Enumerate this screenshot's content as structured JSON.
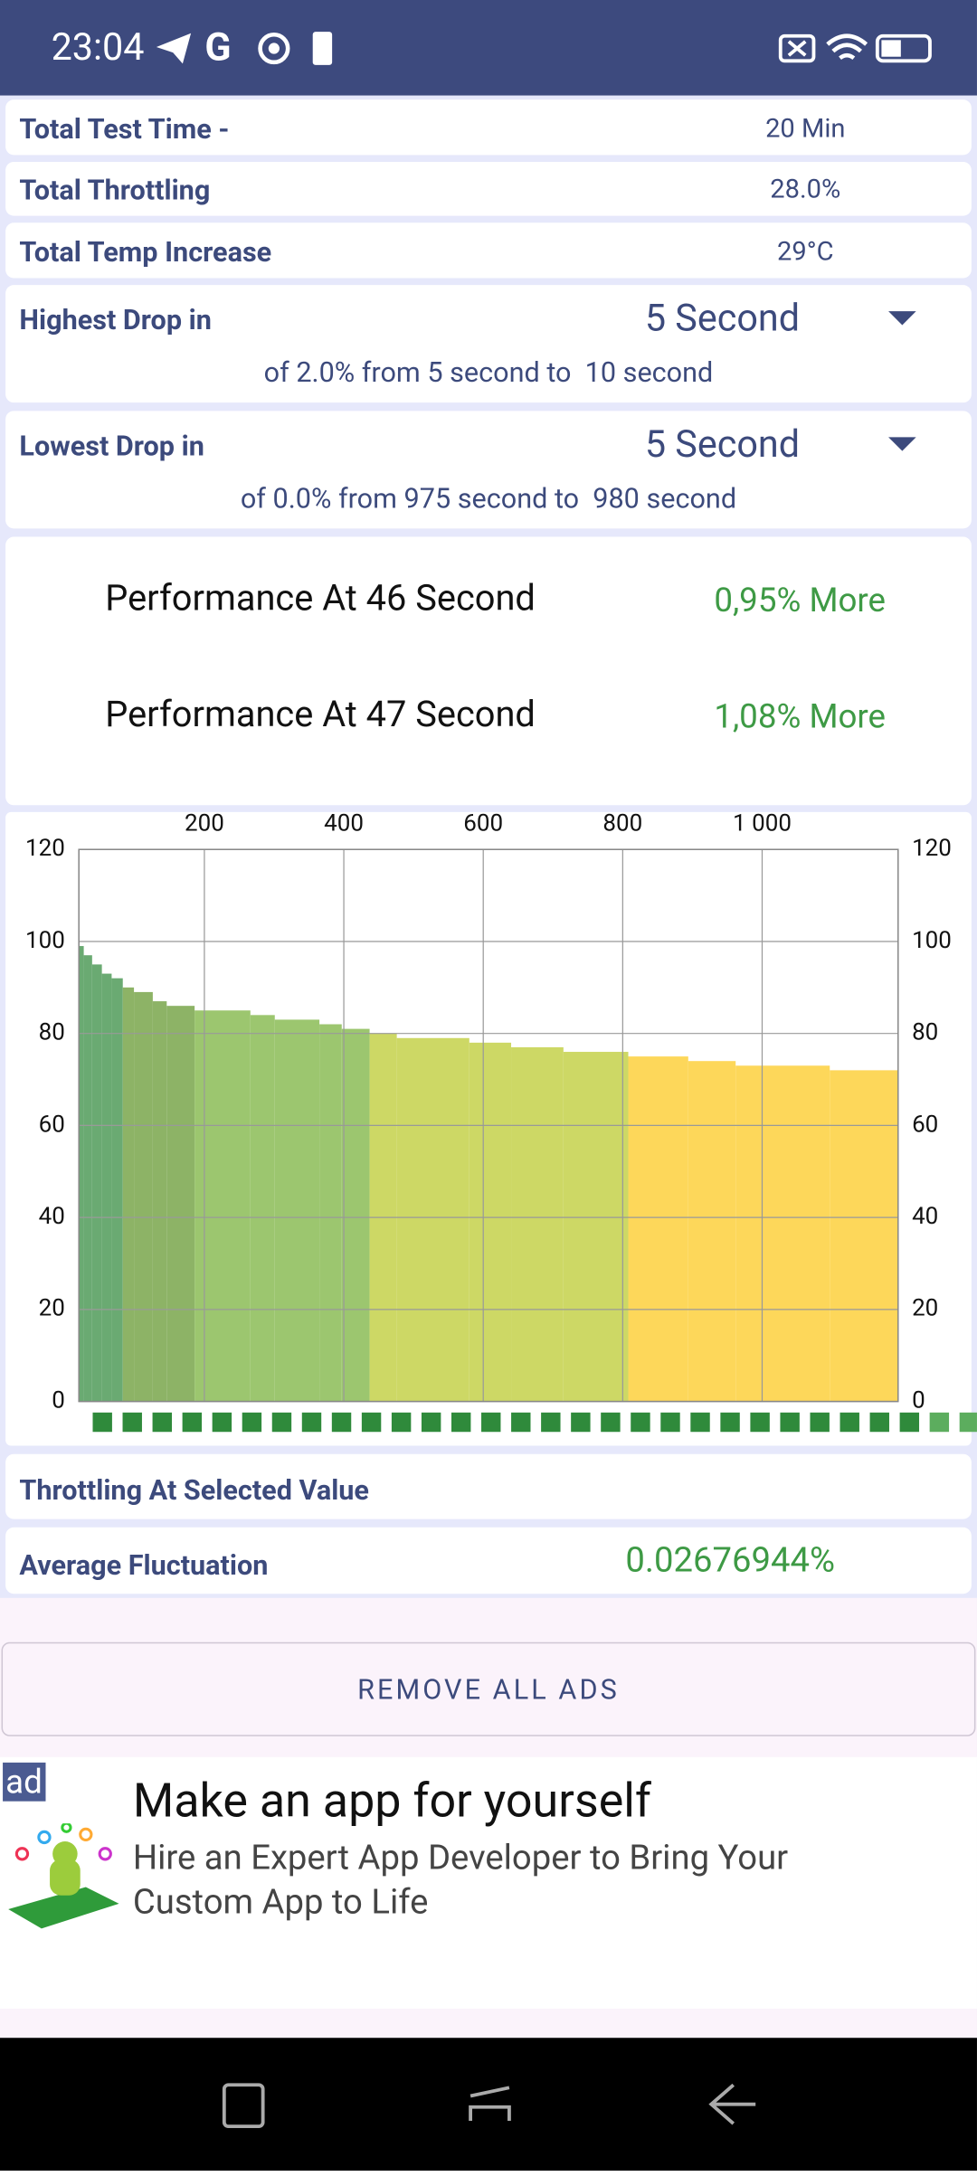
{
  "status_bar": {
    "time": "23:04"
  },
  "summary": {
    "rows": [
      [
        "Total Test Time -",
        "20 Min"
      ],
      [
        "Total Throttling",
        "28.0%"
      ],
      [
        "Total Temp Increase",
        "29°C"
      ]
    ]
  },
  "highest_drop": {
    "label": "Highest Drop in",
    "selected": "5 Second",
    "detail": "of 2.0% from 5 second to  10 second"
  },
  "lowest_drop": {
    "label": "Lowest Drop in",
    "selected": "5 Second",
    "detail": "of 0.0% from 975 second to  980 second"
  },
  "performance": [
    {
      "label": "Performance At 46 Second",
      "value": "0,95% More"
    },
    {
      "label": "Performance At 47 Second",
      "value": "1,08% More"
    }
  ],
  "chart_data": {
    "type": "bar",
    "x": [
      20,
      27,
      39,
      53,
      67,
      83,
      99,
      126,
      146,
      186,
      266,
      301,
      365,
      397,
      437,
      476,
      580,
      640,
      715,
      808,
      894,
      962,
      1097
    ],
    "values": [
      99,
      97,
      95,
      93,
      92,
      90,
      89,
      87,
      86,
      85,
      84,
      83,
      82,
      81,
      80,
      79,
      78,
      77,
      76,
      75,
      74,
      73,
      72
    ],
    "colors": [
      "#6aaa72",
      "#6aaa72",
      "#6aaa72",
      "#6aaa72",
      "#6aaa72",
      "#8db366",
      "#8db366",
      "#8db366",
      "#8db366",
      "#9cc66f",
      "#9cc66f",
      "#9cc66f",
      "#9cc66f",
      "#9cc66f",
      "#cdd865",
      "#cdd865",
      "#cdd865",
      "#cdd865",
      "#cdd865",
      "#fdd75a",
      "#fdd75a",
      "#fdd75a",
      "#fdd75a"
    ],
    "xlim": [
      20,
      1195
    ],
    "ylim": [
      0,
      120
    ],
    "xticks": [
      200,
      400,
      600,
      800,
      {
        "value": 1000,
        "label": "1 000"
      }
    ],
    "yticks": [
      0,
      20,
      40,
      60,
      80,
      100,
      120
    ],
    "grid": true
  },
  "throttling_label": "Throttling At Selected Value",
  "average_fluctuation": {
    "label": "Average Fluctuation",
    "value": "0.02676944%"
  },
  "remove_ads": "REMOVE ALL ADS",
  "ad": {
    "badge": "ad",
    "title": "Make an app for yourself",
    "body": "Hire an Expert App Developer to Bring Your Custom App to Life"
  }
}
